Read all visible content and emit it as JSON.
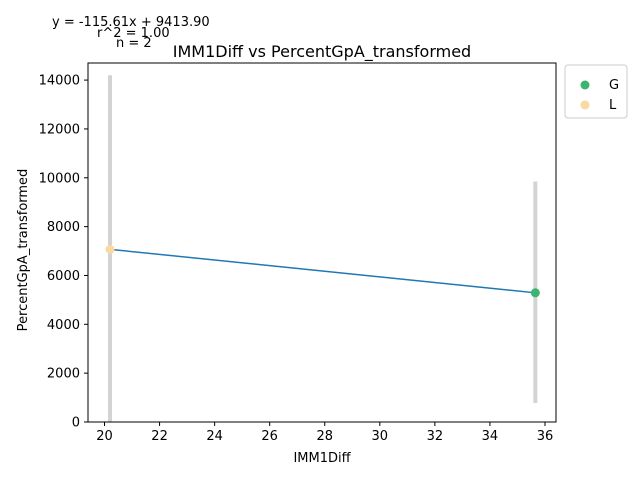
{
  "chart_data": {
    "type": "scatter",
    "title": "IMM1Diff vs PercentGpA_transformed",
    "xlabel": "IMM1Diff",
    "ylabel": "PercentGpA_transformed",
    "xlim": [
      19.4,
      36.4
    ],
    "ylim": [
      0,
      14700
    ],
    "xticks": [
      20,
      22,
      24,
      26,
      28,
      30,
      32,
      34,
      36
    ],
    "yticks": [
      0,
      2000,
      4000,
      6000,
      8000,
      10000,
      12000,
      14000
    ],
    "grid": false,
    "legend_position": "upper-right-outside",
    "series": [
      {
        "name": "G",
        "color": "#3cb371",
        "points": [
          {
            "x": 35.65,
            "y": 5290,
            "err_low": 780,
            "err_high": 9850
          }
        ]
      },
      {
        "name": "L",
        "color": "#f9d9a0",
        "points": [
          {
            "x": 20.2,
            "y": 7070,
            "err_low": 0,
            "err_high": 14200
          }
        ]
      }
    ],
    "regression": {
      "color": "#1f77b4",
      "x_start": 20.2,
      "x_end": 35.65,
      "y_start": 7070,
      "y_end": 5290
    },
    "errorbar_color": "#d3d3d3",
    "annotations": [
      "y = -115.61x + 9413.90",
      "r^2 = 1.00",
      "n = 2"
    ]
  }
}
